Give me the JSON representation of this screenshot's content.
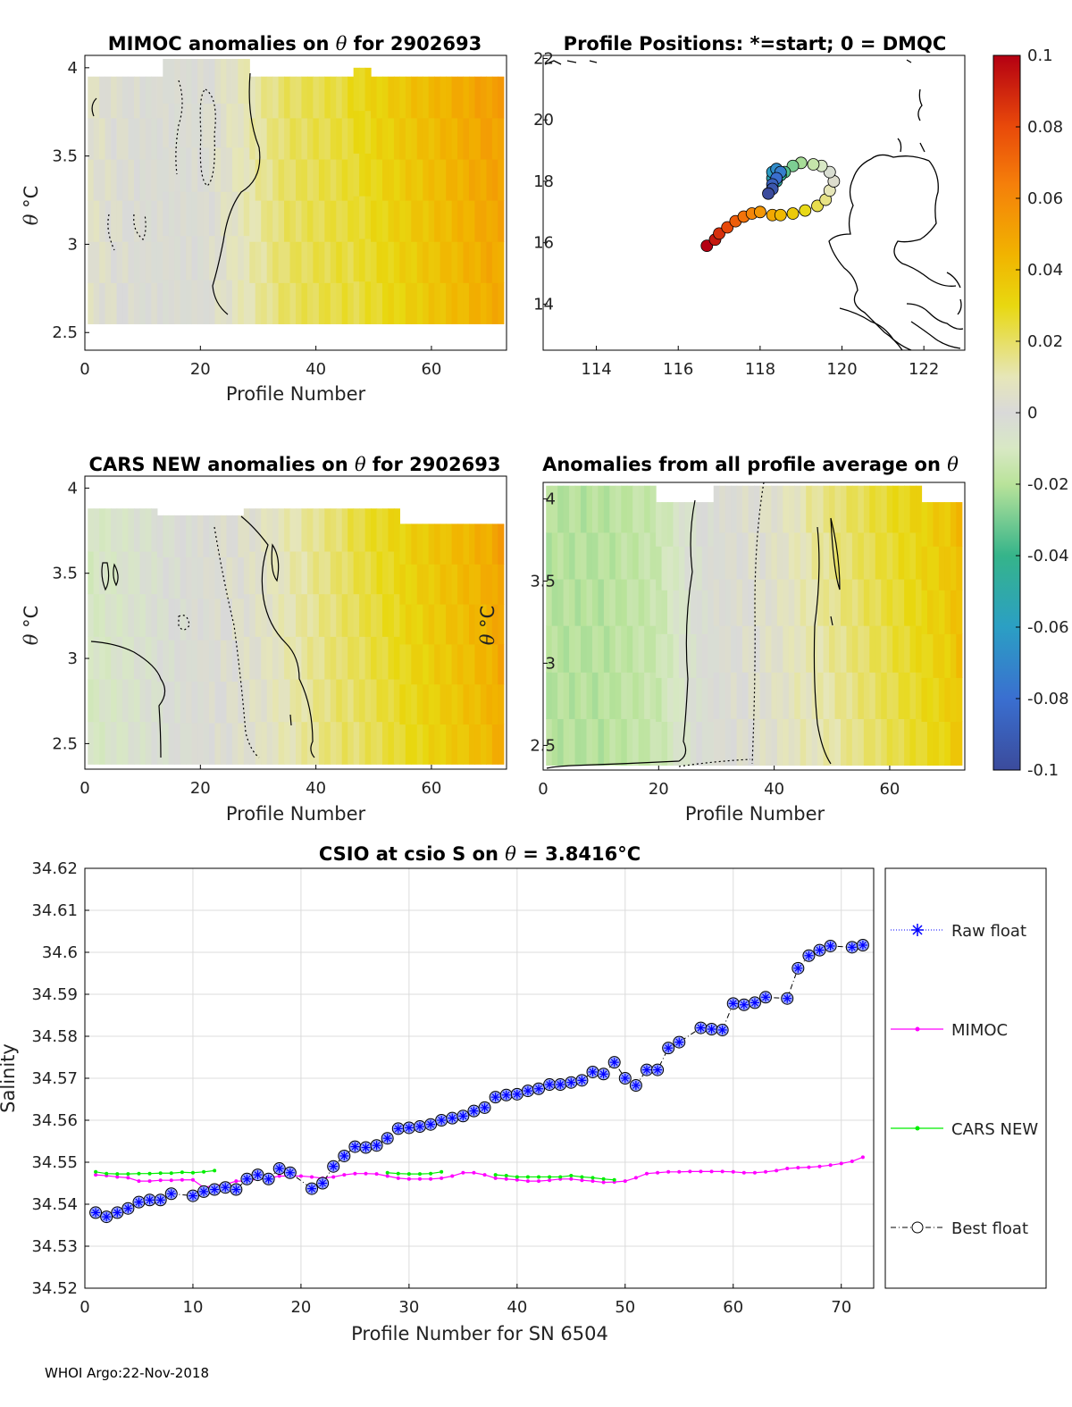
{
  "footer": "WHOI Argo:22-Nov-2018",
  "colors": {
    "raw": "#0000ff",
    "mimoc": "#ff00ff",
    "cars": "#00ee00",
    "best": "#000000",
    "marker_fill": "#9aa8ff",
    "grid": "#dcdcdc"
  },
  "colorbar": {
    "ticks": [
      "0.1",
      "0.08",
      "0.06",
      "0.04",
      "0.02",
      "0",
      "-0.02",
      "-0.04",
      "-0.06",
      "-0.08",
      "-0.1"
    ],
    "range": [
      -0.1,
      0.1
    ]
  },
  "panel_mimoc": {
    "title_prefix": "MIMOC anomalies on",
    "theta": "θ",
    "title_suffix": " for 2902693",
    "xlabel": "Profile Number",
    "ylabel_theta": "θ",
    "ylabel_unit": "°C",
    "xticks": [
      "0",
      "20",
      "40",
      "60"
    ],
    "yticks": [
      "4",
      "3.5",
      "3",
      "2.5"
    ]
  },
  "panel_positions": {
    "title": "Profile Positions: *=start; 0 = DMQC",
    "xticks": [
      "114",
      "116",
      "118",
      "120",
      "122"
    ],
    "yticks": [
      "22",
      "20",
      "18",
      "16",
      "14"
    ]
  },
  "panel_cars": {
    "title_prefix": "CARS NEW anomalies on",
    "theta": "θ",
    "title_suffix": "for 2902693",
    "xlabel": "Profile Number",
    "ylabel_theta": "θ",
    "ylabel_unit": "°C",
    "xticks": [
      "0",
      "20",
      "40",
      "60"
    ],
    "yticks": [
      "4",
      "3.5",
      "3",
      "2.5"
    ]
  },
  "panel_allavg": {
    "title_prefix": "Anomalies from all profile average on",
    "theta": "θ",
    "xlabel": "Profile Number",
    "ylabel_theta": "θ",
    "ylabel_unit": "°C",
    "xticks": [
      "0",
      "20",
      "40",
      "60"
    ],
    "yticks": [
      "4",
      "3.5",
      "3",
      "2.5"
    ]
  },
  "chart_data": [
    {
      "type": "heatmap",
      "title": "MIMOC anomalies on θ for 2902693",
      "xlabel": "Profile Number",
      "ylabel": "θ °C",
      "xlim": [
        0,
        73
      ],
      "ylim": [
        2.4,
        4.07
      ],
      "theta_range": [
        2.55,
        3.95
      ],
      "colorbar_range": [
        -0.1,
        0.1
      ],
      "anomaly_by_profile_approx": [
        [
          1,
          0.005
        ],
        [
          10,
          0.0
        ],
        [
          20,
          0.0
        ],
        [
          28,
          0.01
        ],
        [
          35,
          0.02
        ],
        [
          45,
          0.025
        ],
        [
          50,
          0.03
        ],
        [
          55,
          0.035
        ],
        [
          60,
          0.04
        ],
        [
          65,
          0.045
        ],
        [
          70,
          0.05
        ],
        [
          72,
          0.05
        ]
      ]
    },
    {
      "type": "scatter",
      "title": "Profile Positions: *=start; 0 = DMQC",
      "xlim": [
        112.7,
        123
      ],
      "ylim": [
        12.5,
        22.1
      ],
      "lon": [
        116.7,
        116.9,
        117.0,
        117.2,
        117.4,
        117.6,
        117.8,
        118.0,
        118.3,
        118.5,
        118.8,
        119.1,
        119.4,
        119.6,
        119.7,
        119.8,
        119.7,
        119.5,
        119.3,
        119.0,
        118.8,
        118.6,
        118.5,
        118.4,
        118.3,
        118.3,
        118.4,
        118.5,
        118.4,
        118.3,
        118.3,
        118.2
      ],
      "lat": [
        15.9,
        16.1,
        16.3,
        16.5,
        16.7,
        16.85,
        16.95,
        17.0,
        16.9,
        16.9,
        16.95,
        17.05,
        17.2,
        17.4,
        17.7,
        18.0,
        18.3,
        18.5,
        18.55,
        18.6,
        18.5,
        18.3,
        18.2,
        18.0,
        18.1,
        18.3,
        18.4,
        18.3,
        18.1,
        17.9,
        17.75,
        17.6
      ],
      "color_scale": "profile index: early=dark red, late=blue"
    },
    {
      "type": "heatmap",
      "title": "CARS NEW anomalies on θ for 2902693",
      "xlabel": "Profile Number",
      "ylabel": "θ °C",
      "xlim": [
        0,
        73
      ],
      "ylim": [
        2.35,
        4.07
      ],
      "theta_range": [
        2.38,
        3.88
      ],
      "colorbar_range": [
        -0.1,
        0.1
      ],
      "anomaly_by_profile_approx": [
        [
          1,
          -0.01
        ],
        [
          10,
          -0.005
        ],
        [
          20,
          0.0
        ],
        [
          30,
          0.005
        ],
        [
          40,
          0.015
        ],
        [
          50,
          0.025
        ],
        [
          55,
          0.03
        ],
        [
          60,
          0.035
        ],
        [
          65,
          0.04
        ],
        [
          70,
          0.045
        ],
        [
          72,
          0.05
        ]
      ]
    },
    {
      "type": "heatmap",
      "title": "Anomalies from all profile average on θ",
      "xlabel": "Profile Number",
      "ylabel": "θ °C",
      "xlim": [
        0,
        73
      ],
      "ylim": [
        2.35,
        4.1
      ],
      "theta_range": [
        2.38,
        4.08
      ],
      "colorbar_range": [
        -0.1,
        0.1
      ],
      "anomaly_by_profile_approx": [
        [
          1,
          -0.02
        ],
        [
          10,
          -0.02
        ],
        [
          20,
          -0.015
        ],
        [
          25,
          -0.005
        ],
        [
          30,
          0.0
        ],
        [
          40,
          0.005
        ],
        [
          50,
          0.015
        ],
        [
          55,
          0.02
        ],
        [
          60,
          0.025
        ],
        [
          65,
          0.03
        ],
        [
          70,
          0.035
        ],
        [
          72,
          0.04
        ]
      ]
    },
    {
      "type": "line",
      "title_prefix": "CSIO at csio S on",
      "title_theta": "θ",
      "title_value": " = 3.8416",
      "title_unit": "°C",
      "xlabel": "Profile Number for SN 6504",
      "ylabel": "Salinity",
      "xlim": [
        0,
        73
      ],
      "ylim": [
        34.52,
        34.62
      ],
      "xticks": [
        "0",
        "10",
        "20",
        "30",
        "40",
        "50",
        "60",
        "70"
      ],
      "yticks": [
        "34.62",
        "34.61",
        "34.6",
        "34.59",
        "34.58",
        "34.57",
        "34.56",
        "34.55",
        "34.54",
        "34.53",
        "34.52"
      ],
      "grid": true,
      "legend_position": "right",
      "legend": [
        "Raw float",
        "MIMOC",
        "CARS NEW",
        "Best float"
      ],
      "series": [
        {
          "name": "Raw float",
          "x": [
            1,
            2,
            3,
            4,
            5,
            6,
            7,
            8,
            10,
            11,
            12,
            13,
            14,
            15,
            16,
            17,
            18,
            19,
            21,
            22,
            23,
            24,
            25,
            26,
            27,
            28,
            29,
            30,
            31,
            32,
            33,
            34,
            35,
            36,
            37,
            38,
            39,
            40,
            41,
            42,
            43,
            44,
            45,
            46,
            47,
            48,
            49,
            50,
            51,
            52,
            53,
            54,
            55,
            57,
            58,
            59,
            60,
            61,
            62,
            63,
            65,
            66,
            67,
            68,
            69,
            71,
            72
          ],
          "y": [
            34.538,
            34.537,
            34.538,
            34.539,
            34.5405,
            34.541,
            34.541,
            34.5425,
            34.542,
            34.543,
            34.5435,
            34.544,
            34.5435,
            34.546,
            34.547,
            34.546,
            34.5485,
            34.5475,
            34.5437,
            34.545,
            34.549,
            34.5515,
            34.5537,
            34.5535,
            34.554,
            34.5557,
            34.558,
            34.5582,
            34.5585,
            34.559,
            34.56,
            34.5605,
            34.561,
            34.5622,
            34.563,
            34.5655,
            34.566,
            34.5662,
            34.567,
            34.5675,
            34.5685,
            34.5685,
            34.569,
            34.5695,
            34.5715,
            34.571,
            34.5738,
            34.57,
            34.5683,
            34.572,
            34.572,
            34.5772,
            34.5786,
            34.582,
            34.5817,
            34.5815,
            34.5878,
            34.5875,
            34.588,
            34.5893,
            34.589,
            34.5962,
            34.5992,
            34.6005,
            34.6015,
            34.6012,
            34.6017
          ]
        },
        {
          "name": "MIMOC",
          "x": [
            1,
            2,
            3,
            4,
            5,
            6,
            7,
            8,
            9,
            10,
            11,
            12,
            13,
            14,
            15,
            16,
            17,
            18,
            19,
            20,
            21,
            22,
            23,
            24,
            25,
            26,
            27,
            28,
            29,
            30,
            31,
            32,
            33,
            34,
            35,
            36,
            37,
            38,
            39,
            40,
            41,
            42,
            43,
            44,
            45,
            46,
            47,
            48,
            49,
            50,
            51,
            52,
            53,
            54,
            55,
            56,
            57,
            58,
            59,
            60,
            61,
            62,
            63,
            64,
            65,
            66,
            67,
            68,
            69,
            70,
            71,
            72
          ],
          "y": [
            34.547,
            34.5468,
            34.5465,
            34.5463,
            34.5455,
            34.5455,
            34.5457,
            34.5457,
            34.5458,
            34.5458,
            34.544,
            34.5445,
            34.5447,
            34.5455,
            34.5455,
            34.546,
            34.5462,
            34.5467,
            34.5467,
            34.5467,
            34.5465,
            34.5462,
            34.5465,
            34.547,
            34.5473,
            34.5473,
            34.5472,
            34.5467,
            34.5462,
            34.546,
            34.546,
            34.546,
            34.5462,
            34.5467,
            34.5475,
            34.5475,
            34.547,
            34.5462,
            34.546,
            34.5458,
            34.5455,
            34.5455,
            34.5457,
            34.546,
            34.546,
            34.5457,
            34.5455,
            34.5452,
            34.5453,
            34.5455,
            34.5463,
            34.5473,
            34.5475,
            34.5477,
            34.5477,
            34.5478,
            34.5478,
            34.5478,
            34.5478,
            34.5477,
            34.5475,
            34.5475,
            34.5477,
            34.548,
            34.5485,
            34.5487,
            34.5488,
            34.549,
            34.5493,
            34.5497,
            34.5502,
            34.5512
          ]
        },
        {
          "name": "CARS NEW",
          "x": [
            1,
            2,
            3,
            4,
            5,
            6,
            7,
            8,
            9,
            10,
            11,
            12,
            28,
            29,
            30,
            31,
            32,
            33,
            38,
            39,
            40,
            41,
            42,
            43,
            44,
            45,
            46,
            47,
            48,
            49
          ],
          "y": [
            34.5477,
            34.5473,
            34.5472,
            34.5472,
            34.5473,
            34.5473,
            34.5474,
            34.5474,
            34.5476,
            34.5475,
            34.5477,
            34.548,
            34.5475,
            34.5473,
            34.5472,
            34.5472,
            34.5473,
            34.5477,
            34.547,
            34.5468,
            34.5465,
            34.5465,
            34.5465,
            34.5465,
            34.5465,
            34.5468,
            34.5465,
            34.5463,
            34.546,
            34.5458
          ]
        },
        {
          "name": "Best float",
          "x": [
            1,
            2,
            3,
            4,
            5,
            6,
            7,
            8,
            10,
            11,
            12,
            13,
            14,
            15,
            16,
            17,
            18,
            19,
            21,
            22,
            23,
            24,
            25,
            26,
            27,
            28,
            29,
            30,
            31,
            32,
            33,
            34,
            35,
            36,
            37,
            38,
            39,
            40,
            41,
            42,
            43,
            44,
            45,
            46,
            47,
            48,
            49,
            50,
            51,
            52,
            53,
            54,
            55,
            57,
            58,
            59,
            60,
            61,
            62,
            63,
            65,
            66,
            67,
            68,
            69,
            71,
            72
          ],
          "y": [
            34.538,
            34.537,
            34.538,
            34.539,
            34.5405,
            34.541,
            34.541,
            34.5425,
            34.542,
            34.543,
            34.5435,
            34.544,
            34.5435,
            34.546,
            34.547,
            34.546,
            34.5485,
            34.5475,
            34.5437,
            34.545,
            34.549,
            34.5515,
            34.5537,
            34.5535,
            34.554,
            34.5557,
            34.558,
            34.5582,
            34.5585,
            34.559,
            34.56,
            34.5605,
            34.561,
            34.5622,
            34.563,
            34.5655,
            34.566,
            34.5662,
            34.567,
            34.5675,
            34.5685,
            34.5685,
            34.569,
            34.5695,
            34.5715,
            34.571,
            34.5738,
            34.57,
            34.5683,
            34.572,
            34.572,
            34.5772,
            34.5786,
            34.582,
            34.5817,
            34.5815,
            34.5878,
            34.5875,
            34.588,
            34.5893,
            34.589,
            34.5962,
            34.5992,
            34.6005,
            34.6015,
            34.6012,
            34.6017
          ]
        }
      ]
    }
  ]
}
